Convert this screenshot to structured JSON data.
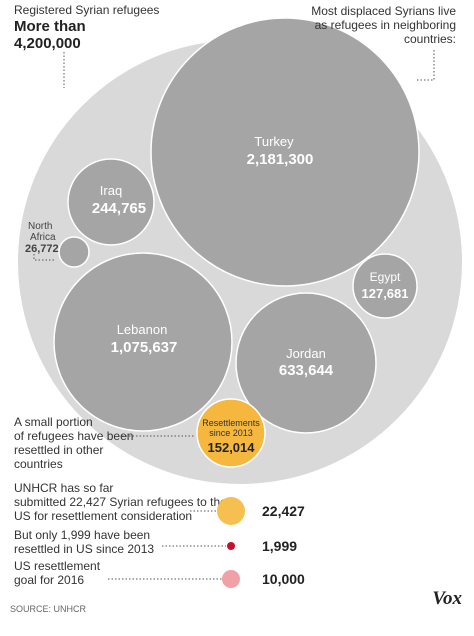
{
  "header": {
    "left_label": "Registered Syrian refugees",
    "left_more": "More than",
    "left_total": "4,200,000",
    "right_note_lines": [
      "Most displaced Syrians live",
      "as refugees in neighboring",
      "countries:"
    ]
  },
  "chart_data": {
    "type": "bubble",
    "total": 4200000,
    "series": [
      {
        "name": "Turkey",
        "value": 2181300,
        "value_label": "2,181,300"
      },
      {
        "name": "Lebanon",
        "value": 1075637,
        "value_label": "1,075,637"
      },
      {
        "name": "Jordan",
        "value": 633644,
        "value_label": "633,644"
      },
      {
        "name": "Iraq",
        "value": 244765,
        "value_label": "244,765"
      },
      {
        "name": "Egypt",
        "value": 127681,
        "value_label": "127,681"
      },
      {
        "name": "North Africa",
        "value": 26772,
        "value_label": "26,772"
      }
    ],
    "resettlements": {
      "label_lines": [
        "Resettlements",
        "since 2013"
      ],
      "value": 152014,
      "value_label": "152,014"
    },
    "resettlement_note_lines": [
      "A small portion",
      "of refugees have been",
      "resettled in other",
      "countries"
    ],
    "us_rows": [
      {
        "text_lines": [
          "UNHCR has so far",
          "submitted 22,427 Syrian refugees to the",
          "US for resettlement consideration"
        ],
        "value": 22427,
        "value_label": "22,427",
        "color": "#f5c04f"
      },
      {
        "text_lines": [
          "But only 1,999 have been",
          "resettled in US since 2013"
        ],
        "value": 1999,
        "value_label": "1,999",
        "color": "#c8102e"
      },
      {
        "text_lines": [
          "US resettlement",
          "goal for 2016"
        ],
        "value": 10000,
        "value_label": "10,000",
        "color": "#f2a0a8"
      }
    ]
  },
  "colors": {
    "outer": "#d9d9d9",
    "country": "#a5a5a5",
    "country_stroke": "#ffffff",
    "resettlement": "#f5b73d"
  },
  "footer": {
    "source": "SOURCE: UNHCR",
    "logo": "Vox"
  }
}
